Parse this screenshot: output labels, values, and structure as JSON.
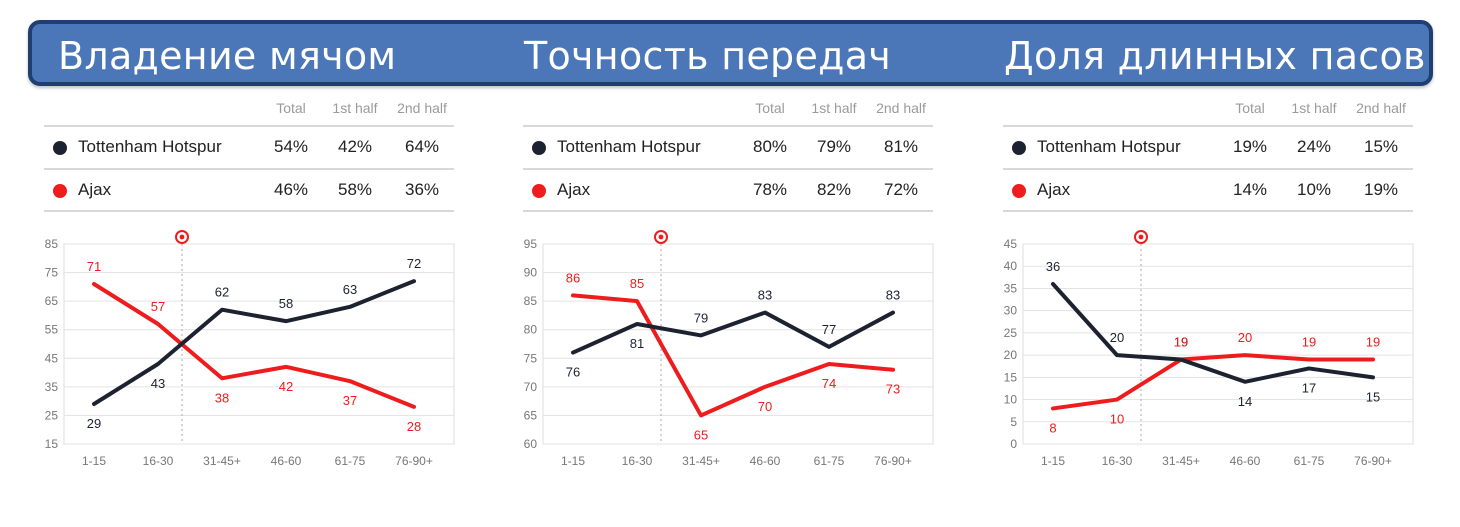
{
  "titles": [
    "Владение мячом",
    "Точность передач",
    "Доля длинных пасов"
  ],
  "table_headers": [
    "Total",
    "1st half",
    "2nd half"
  ],
  "colors": {
    "tottenham": "#1c2230",
    "ajax": "#ee1c1c",
    "banner": "#4b76b7",
    "grid": "#e3e3e3"
  },
  "icons": {
    "event_marker": "football-icon"
  },
  "panels": [
    {
      "rows": [
        {
          "team": "Tottenham Hotspur",
          "total": "54%",
          "first_half": "42%",
          "second_half": "64%"
        },
        {
          "team": "Ajax",
          "total": "46%",
          "first_half": "58%",
          "second_half": "36%"
        }
      ]
    },
    {
      "rows": [
        {
          "team": "Tottenham Hotspur",
          "total": "80%",
          "first_half": "79%",
          "second_half": "81%"
        },
        {
          "team": "Ajax",
          "total": "78%",
          "first_half": "82%",
          "second_half": "72%"
        }
      ]
    },
    {
      "rows": [
        {
          "team": "Tottenham Hotspur",
          "total": "19%",
          "first_half": "24%",
          "second_half": "15%"
        },
        {
          "team": "Ajax",
          "total": "14%",
          "first_half": "10%",
          "second_half": "19%"
        }
      ]
    }
  ],
  "chart_data": [
    {
      "type": "line",
      "title": "Владение мячом",
      "categories": [
        "1-15",
        "16-30",
        "31-45+",
        "46-60",
        "61-75",
        "76-90+"
      ],
      "ylim": [
        15,
        85
      ],
      "yticks": [
        15,
        25,
        35,
        45,
        55,
        65,
        75,
        85
      ],
      "event_marker_x": 1.5,
      "series": [
        {
          "name": "Tottenham Hotspur",
          "values": [
            29,
            43,
            62,
            58,
            63,
            72
          ],
          "labels": [
            "29",
            "43",
            "62",
            "58",
            "63",
            "72"
          ]
        },
        {
          "name": "Ajax",
          "values": [
            71,
            57,
            38,
            42,
            37,
            28
          ],
          "labels": [
            "71",
            "57",
            "38",
            "42",
            "37",
            "28"
          ]
        }
      ]
    },
    {
      "type": "line",
      "title": "Точность передач",
      "categories": [
        "1-15",
        "16-30",
        "31-45+",
        "46-60",
        "61-75",
        "76-90+"
      ],
      "ylim": [
        60,
        95
      ],
      "yticks": [
        60,
        65,
        70,
        75,
        80,
        85,
        90,
        95
      ],
      "event_marker_x": 1.5,
      "series": [
        {
          "name": "Tottenham Hotspur",
          "values": [
            76,
            81,
            79,
            83,
            77,
            83
          ],
          "labels": [
            "76",
            "81",
            "79",
            "83",
            "77",
            "83"
          ]
        },
        {
          "name": "Ajax",
          "values": [
            86,
            85,
            65,
            70,
            74,
            73
          ],
          "labels": [
            "86",
            "85",
            "65",
            "70",
            "74",
            "73"
          ]
        }
      ]
    },
    {
      "type": "line",
      "title": "Доля длинных пасов",
      "categories": [
        "1-15",
        "16-30",
        "31-45+",
        "46-60",
        "61-75",
        "76-90+"
      ],
      "ylim": [
        0,
        45
      ],
      "yticks": [
        0,
        5,
        10,
        15,
        20,
        25,
        30,
        35,
        40,
        45
      ],
      "event_marker_x": 1.5,
      "series": [
        {
          "name": "Tottenham Hotspur",
          "values": [
            36,
            20,
            19,
            14,
            17,
            15
          ],
          "labels": [
            "36",
            "20",
            "19",
            "14",
            "17",
            "15"
          ]
        },
        {
          "name": "Ajax",
          "values": [
            8,
            10,
            19,
            20,
            19,
            19
          ],
          "labels": [
            "8",
            "10",
            "19",
            "20",
            "19",
            "19"
          ]
        }
      ]
    }
  ]
}
